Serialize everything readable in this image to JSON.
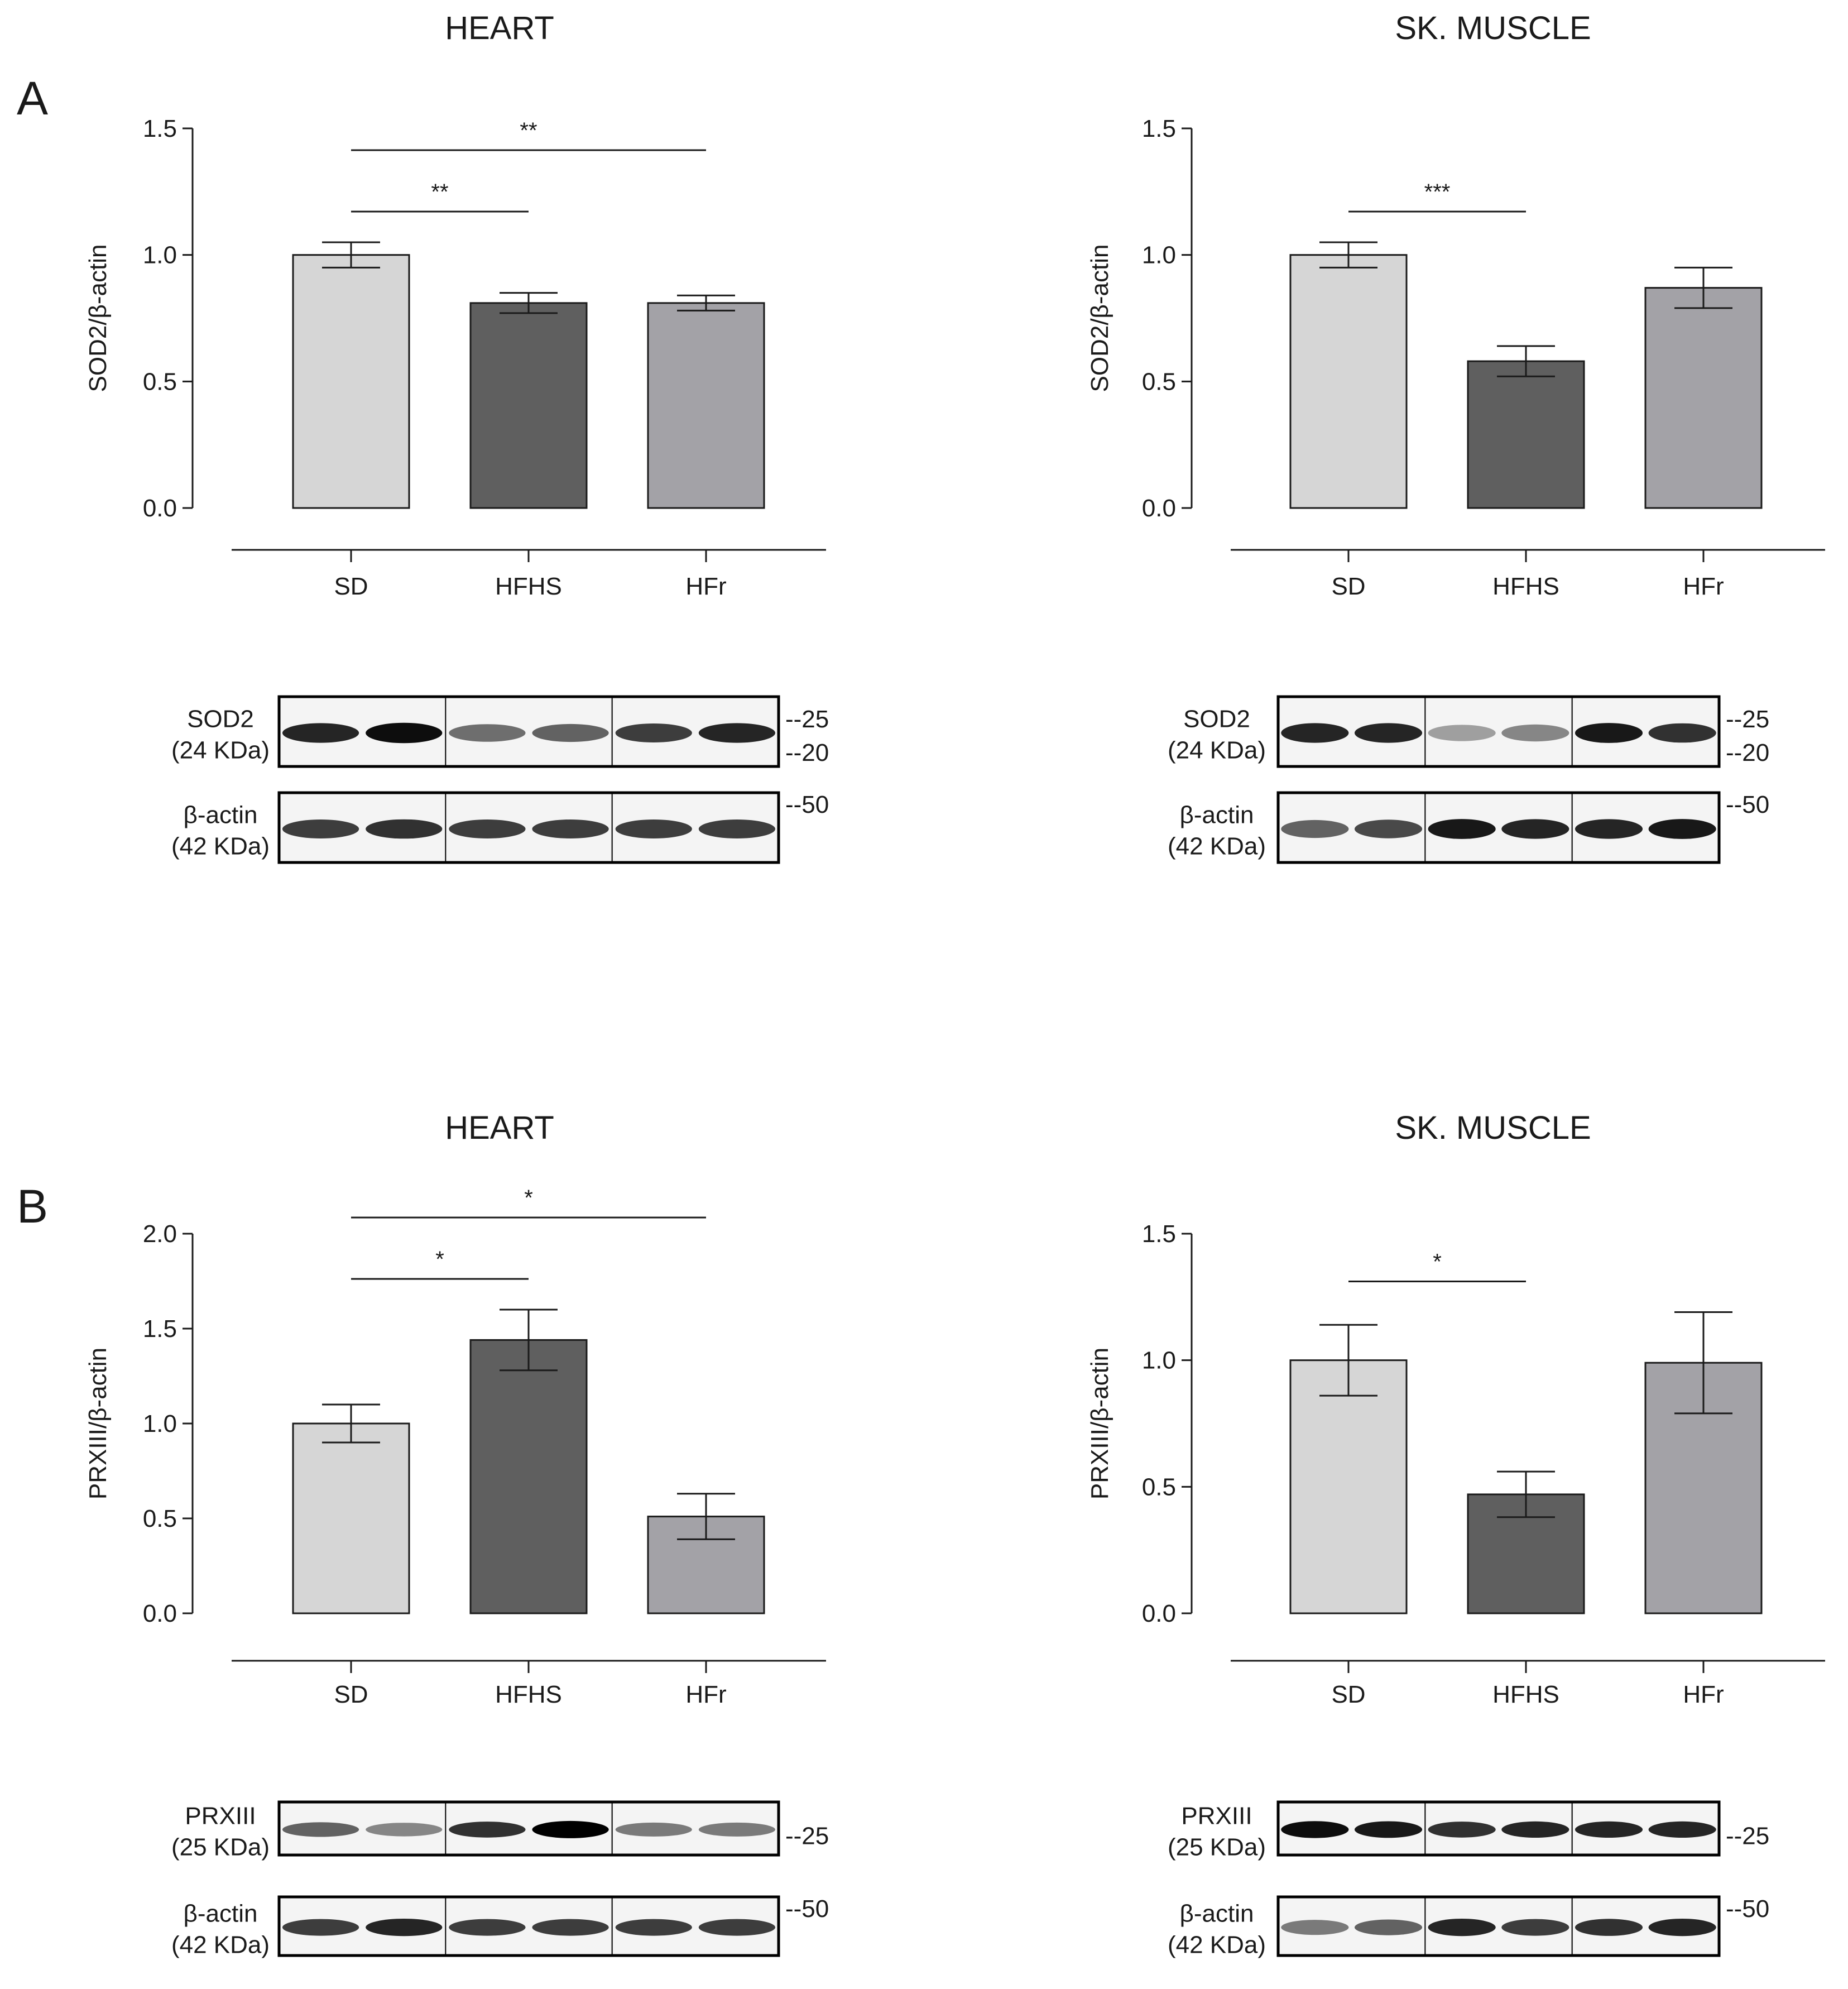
{
  "panels": [
    {
      "letter": "A",
      "charts": [
        {
          "type": "bar",
          "tissue": "HEART",
          "ylabel": "SOD2/β-actin",
          "ylim": [
            0,
            1.5
          ],
          "yticks": [
            "0.0",
            "0.5",
            "1.0",
            "1.5"
          ],
          "categories": [
            "SD",
            "HFHS",
            "HFr"
          ],
          "values": [
            1.0,
            0.81,
            0.81
          ],
          "errors": [
            0.05,
            0.04,
            0.03
          ],
          "significance": [
            {
              "from": 0,
              "to": 1,
              "label": "**"
            },
            {
              "from": 0,
              "to": 2,
              "label": "**"
            }
          ],
          "blots": [
            {
              "protein": "SOD2",
              "size": "(24 KDa)",
              "markers": [
                "--25",
                "--20"
              ],
              "intensities": [
                0.85,
                0.95,
                0.55,
                0.6,
                0.75,
                0.85
              ]
            },
            {
              "protein": "β-actin",
              "size": "(42 KDa)",
              "markers": [
                "--50"
              ],
              "intensities": [
                0.75,
                0.8,
                0.75,
                0.75,
                0.75,
                0.75
              ]
            }
          ]
        },
        {
          "type": "bar",
          "tissue": "SK. MUSCLE",
          "ylabel": "SOD2/β-actin",
          "ylim": [
            0,
            1.5
          ],
          "yticks": [
            "0.0",
            "0.5",
            "1.0",
            "1.5"
          ],
          "categories": [
            "SD",
            "HFHS",
            "HFr"
          ],
          "values": [
            1.0,
            0.58,
            0.87
          ],
          "errors": [
            0.05,
            0.06,
            0.08
          ],
          "significance": [
            {
              "from": 0,
              "to": 1,
              "label": "***"
            }
          ],
          "blots": [
            {
              "protein": "SOD2",
              "size": "(24 KDa)",
              "markers": [
                "--25",
                "--20"
              ],
              "intensities": [
                0.85,
                0.85,
                0.35,
                0.45,
                0.9,
                0.8
              ]
            },
            {
              "protein": "β-actin",
              "size": "(42 KDa)",
              "markers": [
                "--50"
              ],
              "intensities": [
                0.6,
                0.7,
                0.9,
                0.85,
                0.85,
                0.9
              ]
            }
          ]
        }
      ]
    },
    {
      "letter": "B",
      "charts": [
        {
          "type": "bar",
          "tissue": "HEART",
          "ylabel": "PRXIII/β-actin",
          "ylim": [
            0,
            2.0
          ],
          "yticks": [
            "0.0",
            "0.5",
            "1.0",
            "1.5",
            "2.0"
          ],
          "categories": [
            "SD",
            "HFHS",
            "HFr"
          ],
          "values": [
            1.0,
            1.44,
            0.51
          ],
          "errors": [
            0.1,
            0.16,
            0.12
          ],
          "significance": [
            {
              "from": 0,
              "to": 1,
              "label": "*"
            },
            {
              "from": 0,
              "to": 2,
              "label": "*"
            }
          ],
          "blots": [
            {
              "protein": "PRXIII",
              "size": "(25 KDa)",
              "markers": [
                "--25"
              ],
              "intensities": [
                0.6,
                0.45,
                0.8,
                1.0,
                0.5,
                0.5
              ]
            },
            {
              "protein": "β-actin",
              "size": "(42 KDa)",
              "markers": [
                "--50"
              ],
              "intensities": [
                0.75,
                0.85,
                0.75,
                0.75,
                0.75,
                0.75
              ]
            }
          ]
        },
        {
          "type": "bar",
          "tissue": "SK. MUSCLE",
          "ylabel": "PRXIII/β-actin",
          "ylim": [
            0,
            1.5
          ],
          "yticks": [
            "0.0",
            "0.5",
            "1.0",
            "1.5"
          ],
          "categories": [
            "SD",
            "HFHS",
            "HFr"
          ],
          "values": [
            1.0,
            0.47,
            0.99
          ],
          "errors": [
            0.14,
            0.09,
            0.2
          ],
          "significance": [
            {
              "from": 0,
              "to": 1,
              "label": "*"
            }
          ],
          "blots": [
            {
              "protein": "PRXIII",
              "size": "(25 KDa)",
              "markers": [
                "--25"
              ],
              "intensities": [
                0.95,
                0.9,
                0.8,
                0.85,
                0.85,
                0.85
              ]
            },
            {
              "protein": "β-actin",
              "size": "(42 KDa)",
              "markers": [
                "--50"
              ],
              "intensities": [
                0.5,
                0.6,
                0.85,
                0.75,
                0.8,
                0.85
              ]
            }
          ]
        }
      ]
    }
  ],
  "colors": {
    "bars": [
      "#d6d6d6",
      "#5f5f5f",
      "#a3a2a7"
    ],
    "axis": "#1a1a1a"
  }
}
